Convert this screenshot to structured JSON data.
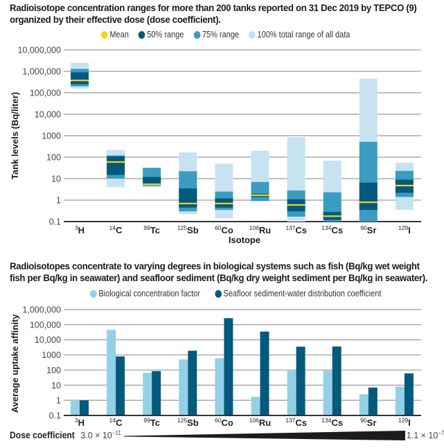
{
  "chart_data": [
    {
      "type": "bar",
      "subtype": "floating-range",
      "title": "Radioisotope concentration ranges for more than 200 tanks reported on 31 Dec 2019 by TEPCO (9) organized by their effective dose (dose coefficient).",
      "title_lines": [
        "Radioisotope concentration ranges for more than 200 tanks reported on 31 Dec 2019 by TEPCO (9)",
        "organized by their effective dose (dose coefficient)."
      ],
      "xlabel": "Isotope",
      "ylabel": "Tank levels (Bq/liter)",
      "yscale": "log",
      "ylim": [
        0.1,
        10000000
      ],
      "yticks": [
        0.1,
        1,
        10,
        100,
        1000,
        10000,
        100000,
        1000000,
        10000000
      ],
      "ytick_labels": [
        "0.1",
        "1",
        "10",
        "100",
        "1000",
        "10,000",
        "100,000",
        "1,000,000",
        "10,000,000"
      ],
      "grid": true,
      "legend_position": "top",
      "legend": [
        {
          "label": "Mean",
          "color": "#f2d21b"
        },
        {
          "label": "50% range",
          "color": "#035a7c"
        },
        {
          "label": "75% range",
          "color": "#3a9cc1"
        },
        {
          "label": "100% total range of all data",
          "color": "#c7e3f2"
        }
      ],
      "categories": [
        {
          "mass": "3",
          "symbol": "H"
        },
        {
          "mass": "14",
          "symbol": "C"
        },
        {
          "mass": "99",
          "symbol": "Tc"
        },
        {
          "mass": "125",
          "symbol": "Sb"
        },
        {
          "mass": "60",
          "symbol": "Co"
        },
        {
          "mass": "106",
          "symbol": "Ru"
        },
        {
          "mass": "137",
          "symbol": "Cs"
        },
        {
          "mass": "134",
          "symbol": "Cs"
        },
        {
          "mass": "90",
          "symbol": "Sr"
        },
        {
          "mass": "129",
          "symbol": "I"
        }
      ],
      "series": [
        {
          "name": "100% total range of all data",
          "ranges": [
            [
              160000,
              2500000
            ],
            [
              4,
              220
            ],
            [
              4.2,
              32
            ],
            [
              0.22,
              170
            ],
            [
              0.14,
              50
            ],
            [
              0.9,
              200
            ],
            [
              0.1,
              850
            ],
            [
              0.1,
              70
            ],
            [
              0.1,
              450000
            ],
            [
              0.35,
              55
            ]
          ]
        },
        {
          "name": "75% range",
          "ranges": [
            [
              200000,
              1300000
            ],
            [
              10,
              120
            ],
            [
              4.5,
              32
            ],
            [
              0.3,
              22
            ],
            [
              0.35,
              2.5
            ],
            [
              0.9,
              7
            ],
            [
              0.17,
              2.8
            ],
            [
              0.1,
              2.3
            ],
            [
              0.1,
              520
            ],
            [
              1.4,
              23
            ]
          ]
        },
        {
          "name": "50% range",
          "ranges": [
            [
              250000,
              900000
            ],
            [
              15,
              110
            ],
            [
              5,
              12
            ],
            [
              0.45,
              3.5
            ],
            [
              0.45,
              1.2
            ],
            [
              1.4,
              2
            ],
            [
              0.3,
              1.1
            ],
            [
              0.12,
              0.28
            ],
            [
              0.35,
              6.5
            ],
            [
              2.2,
              9
            ]
          ]
        },
        {
          "name": "Mean",
          "values": [
            380000,
            60,
            5.5,
            0.7,
            0.7,
            1.7,
            0.6,
            0.18,
            0.8,
            4.8
          ]
        }
      ]
    },
    {
      "type": "bar",
      "title": "Radioisotopes concentrate to varying degrees in biological systems such as fish (Bq/kg wet weight fish per Bq/kg in seawater) and seafloor sediment (Bq/kg dry weight sediment per Bq/kg in seawater).",
      "title_lines": [
        "Radioisotopes concentrate to varying degrees in biological systems such as fish (Bq/kg wet weight",
        "fish per Bq/kg in seawater) and seafloor sediment (Bq/kg dry weight sediment per Bq/kg in seawater)."
      ],
      "xlabel": "",
      "ylabel": "Average uptake affinity",
      "yscale": "log",
      "ylim": [
        0.1,
        1000000
      ],
      "yticks": [
        0.1,
        1,
        10,
        100,
        1000,
        10000,
        100000,
        1000000
      ],
      "ytick_labels": [
        "0.1",
        "1",
        "10",
        "100",
        "1000",
        "10,000",
        "100,000",
        "1,000,000"
      ],
      "grid": true,
      "legend_position": "top",
      "categories": [
        {
          "mass": "3",
          "symbol": "H"
        },
        {
          "mass": "14",
          "symbol": "C"
        },
        {
          "mass": "99",
          "symbol": "Tc"
        },
        {
          "mass": "125",
          "symbol": "Sb"
        },
        {
          "mass": "60",
          "symbol": "Co"
        },
        {
          "mass": "106",
          "symbol": "Ru"
        },
        {
          "mass": "137",
          "symbol": "Cs"
        },
        {
          "mass": "134",
          "symbol": "Cs"
        },
        {
          "mass": "90",
          "symbol": "Sr"
        },
        {
          "mass": "129",
          "symbol": "I"
        }
      ],
      "series": [
        {
          "name": "Biological concentration factor",
          "color": "#94cfe8",
          "values": [
            1,
            45000,
            65,
            500,
            600,
            1.7,
            90,
            90,
            2.5,
            8
          ]
        },
        {
          "name": "Seafloor sediment-water distribution coefficient",
          "color": "#035a7c",
          "values": [
            1,
            800,
            85,
            1900,
            270000,
            35000,
            3500,
            3600,
            7,
            60
          ]
        }
      ]
    }
  ],
  "dose_coefficient": {
    "label": "Dose coefficient",
    "low": {
      "mantissa": "3.0 × 10",
      "exponent": "−11"
    },
    "high": {
      "mantissa": "1.1 × 10",
      "exponent": "−7"
    }
  }
}
